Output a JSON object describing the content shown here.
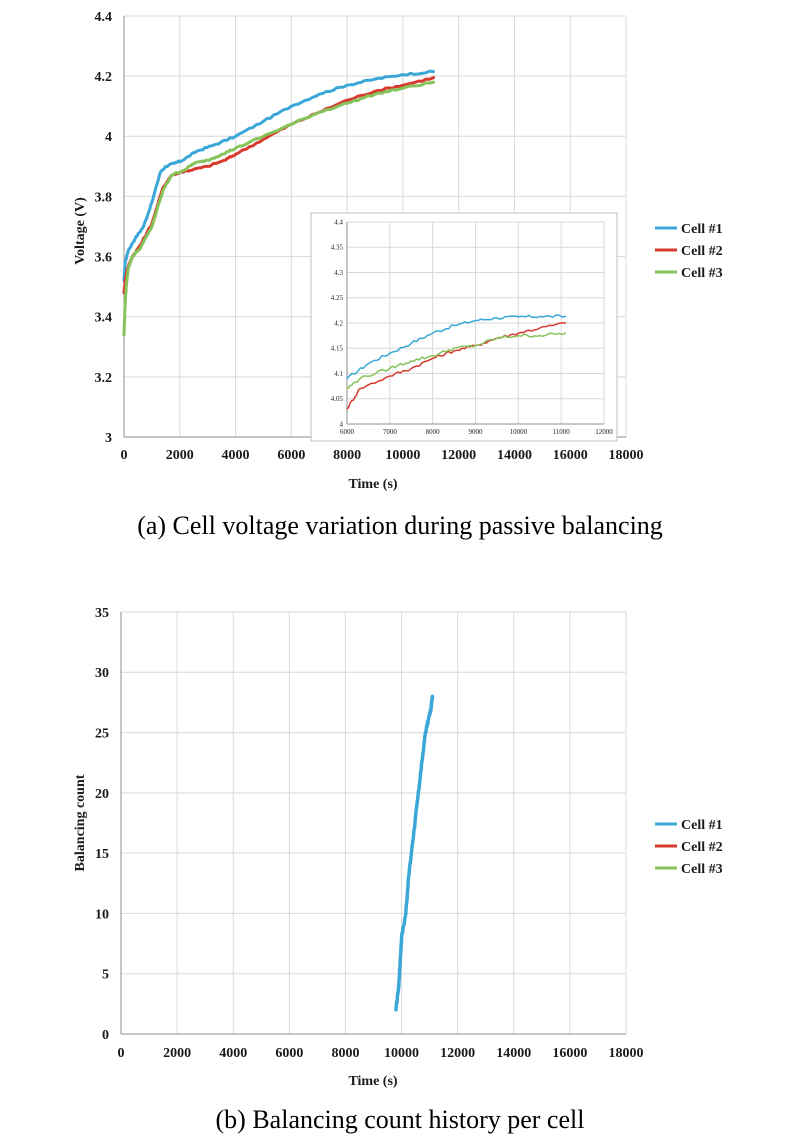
{
  "colors": {
    "cell1": "#3aa7d8",
    "cell2": "#d93a2f",
    "cell3": "#86c35a",
    "grid": "#d9d9d9",
    "axis": "#8c8c8c"
  },
  "chart_data": [
    {
      "id": "voltage",
      "type": "line",
      "caption": "(a) Cell voltage variation during passive balancing",
      "xlabel": "Time (s)",
      "ylabel": "Voltage (V)",
      "xlim": [
        0,
        18000
      ],
      "ylim": [
        3,
        4.4
      ],
      "xticks": [
        0,
        2000,
        4000,
        6000,
        8000,
        10000,
        12000,
        14000,
        16000,
        18000
      ],
      "yticks": [
        3,
        3.2,
        3.4,
        3.6,
        3.8,
        4,
        4.2,
        4.4
      ],
      "ytick_labels": [
        "3",
        "3.2",
        "3.4",
        "3.6",
        "3.8",
        "4",
        "4.2",
        "4.4"
      ],
      "legend": [
        "Cell #1",
        "Cell #2",
        "Cell #3"
      ],
      "series": [
        {
          "name": "Cell #1",
          "color_key": "cell1",
          "points": [
            [
              0,
              3.52
            ],
            [
              40,
              3.58
            ],
            [
              150,
              3.62
            ],
            [
              400,
              3.66
            ],
            [
              700,
              3.7
            ],
            [
              1000,
              3.78
            ],
            [
              1300,
              3.88
            ],
            [
              1500,
              3.9
            ],
            [
              1800,
              3.91
            ],
            [
              2100,
              3.92
            ],
            [
              2600,
              3.95
            ],
            [
              3200,
              3.97
            ],
            [
              4000,
              4.0
            ],
            [
              5000,
              4.05
            ],
            [
              6000,
              4.1
            ],
            [
              7000,
              4.14
            ],
            [
              8000,
              4.17
            ],
            [
              9000,
              4.19
            ],
            [
              10000,
              4.205
            ],
            [
              11100,
              4.215
            ]
          ]
        },
        {
          "name": "Cell #2",
          "color_key": "cell2",
          "points": [
            [
              0,
              3.48
            ],
            [
              40,
              3.52
            ],
            [
              120,
              3.56
            ],
            [
              300,
              3.6
            ],
            [
              600,
              3.64
            ],
            [
              1000,
              3.71
            ],
            [
              1400,
              3.83
            ],
            [
              1700,
              3.87
            ],
            [
              2000,
              3.88
            ],
            [
              2500,
              3.89
            ],
            [
              3000,
              3.9
            ],
            [
              3600,
              3.92
            ],
            [
              4000,
              3.94
            ],
            [
              5000,
              3.99
            ],
            [
              6000,
              4.04
            ],
            [
              7000,
              4.08
            ],
            [
              8000,
              4.12
            ],
            [
              9000,
              4.15
            ],
            [
              10000,
              4.17
            ],
            [
              11100,
              4.195
            ]
          ]
        },
        {
          "name": "Cell #3",
          "color_key": "cell3",
          "points": [
            [
              0,
              3.34
            ],
            [
              30,
              3.42
            ],
            [
              80,
              3.5
            ],
            [
              150,
              3.56
            ],
            [
              300,
              3.6
            ],
            [
              600,
              3.63
            ],
            [
              1000,
              3.7
            ],
            [
              1400,
              3.82
            ],
            [
              1700,
              3.87
            ],
            [
              2200,
              3.89
            ],
            [
              2500,
              3.91
            ],
            [
              3000,
              3.92
            ],
            [
              3500,
              3.94
            ],
            [
              4000,
              3.96
            ],
            [
              5000,
              4.0
            ],
            [
              6000,
              4.04
            ],
            [
              7000,
              4.08
            ],
            [
              8000,
              4.11
            ],
            [
              9000,
              4.14
            ],
            [
              10000,
              4.16
            ],
            [
              11100,
              4.18
            ]
          ]
        }
      ],
      "inset": {
        "xlim": [
          6000,
          12000
        ],
        "ylim": [
          4,
          4.4
        ],
        "xticks": [
          6000,
          7000,
          8000,
          9000,
          10000,
          11000,
          12000
        ],
        "yticks": [
          4,
          4.05,
          4.1,
          4.15,
          4.2,
          4.25,
          4.3,
          4.35,
          4.4
        ],
        "ytick_labels": [
          "4",
          "4.05",
          "4.1",
          "4.15",
          "4.2",
          "4.25",
          "4.3",
          "4.35",
          "4.4"
        ],
        "series": [
          {
            "name": "Cell #1",
            "color_key": "cell1",
            "points": [
              [
                6000,
                4.09
              ],
              [
                6500,
                4.12
              ],
              [
                7000,
                4.14
              ],
              [
                7500,
                4.16
              ],
              [
                8000,
                4.18
              ],
              [
                8500,
                4.195
              ],
              [
                9000,
                4.205
              ],
              [
                9500,
                4.21
              ],
              [
                10000,
                4.212
              ],
              [
                10500,
                4.213
              ],
              [
                11100,
                4.213
              ]
            ]
          },
          {
            "name": "Cell #2",
            "color_key": "cell2",
            "points": [
              [
                6000,
                4.03
              ],
              [
                6300,
                4.07
              ],
              [
                7000,
                4.095
              ],
              [
                7500,
                4.11
              ],
              [
                8000,
                4.13
              ],
              [
                8500,
                4.145
              ],
              [
                9000,
                4.155
              ],
              [
                9500,
                4.17
              ],
              [
                10000,
                4.18
              ],
              [
                10500,
                4.19
              ],
              [
                11100,
                4.2
              ]
            ]
          },
          {
            "name": "Cell #3",
            "color_key": "cell3",
            "points": [
              [
                6000,
                4.07
              ],
              [
                6300,
                4.09
              ],
              [
                7000,
                4.11
              ],
              [
                7500,
                4.125
              ],
              [
                8000,
                4.135
              ],
              [
                8500,
                4.15
              ],
              [
                9000,
                4.155
              ],
              [
                9500,
                4.17
              ],
              [
                10000,
                4.175
              ],
              [
                10500,
                4.175
              ],
              [
                11100,
                4.18
              ]
            ]
          }
        ]
      }
    },
    {
      "id": "count",
      "type": "line",
      "caption": "(b) Balancing count history per cell",
      "xlabel": "Time (s)",
      "ylabel": "Balancing count",
      "xlim": [
        0,
        18000
      ],
      "ylim": [
        0,
        35
      ],
      "xticks": [
        0,
        2000,
        4000,
        6000,
        8000,
        10000,
        12000,
        14000,
        16000,
        18000
      ],
      "yticks": [
        0,
        5,
        10,
        15,
        20,
        25,
        30,
        35
      ],
      "ytick_labels": [
        "0",
        "5",
        "10",
        "15",
        "20",
        "25",
        "30",
        "35"
      ],
      "legend": [
        "Cell #1",
        "Cell #2",
        "Cell #3"
      ],
      "series": [
        {
          "name": "Cell #1",
          "color_key": "cell1",
          "points": [
            [
              9800,
              2
            ],
            [
              9900,
              4
            ],
            [
              9950,
              6
            ],
            [
              10000,
              8
            ],
            [
              10150,
              10
            ],
            [
              10250,
              13
            ],
            [
              10350,
              15
            ],
            [
              10450,
              17
            ],
            [
              10550,
              19
            ],
            [
              10650,
              21
            ],
            [
              10750,
              23
            ],
            [
              10850,
              25
            ],
            [
              10950,
              26
            ],
            [
              11050,
              27
            ],
            [
              11100,
              28
            ]
          ]
        },
        {
          "name": "Cell #2",
          "color_key": "cell2",
          "points": []
        },
        {
          "name": "Cell #3",
          "color_key": "cell3",
          "points": []
        }
      ]
    }
  ]
}
